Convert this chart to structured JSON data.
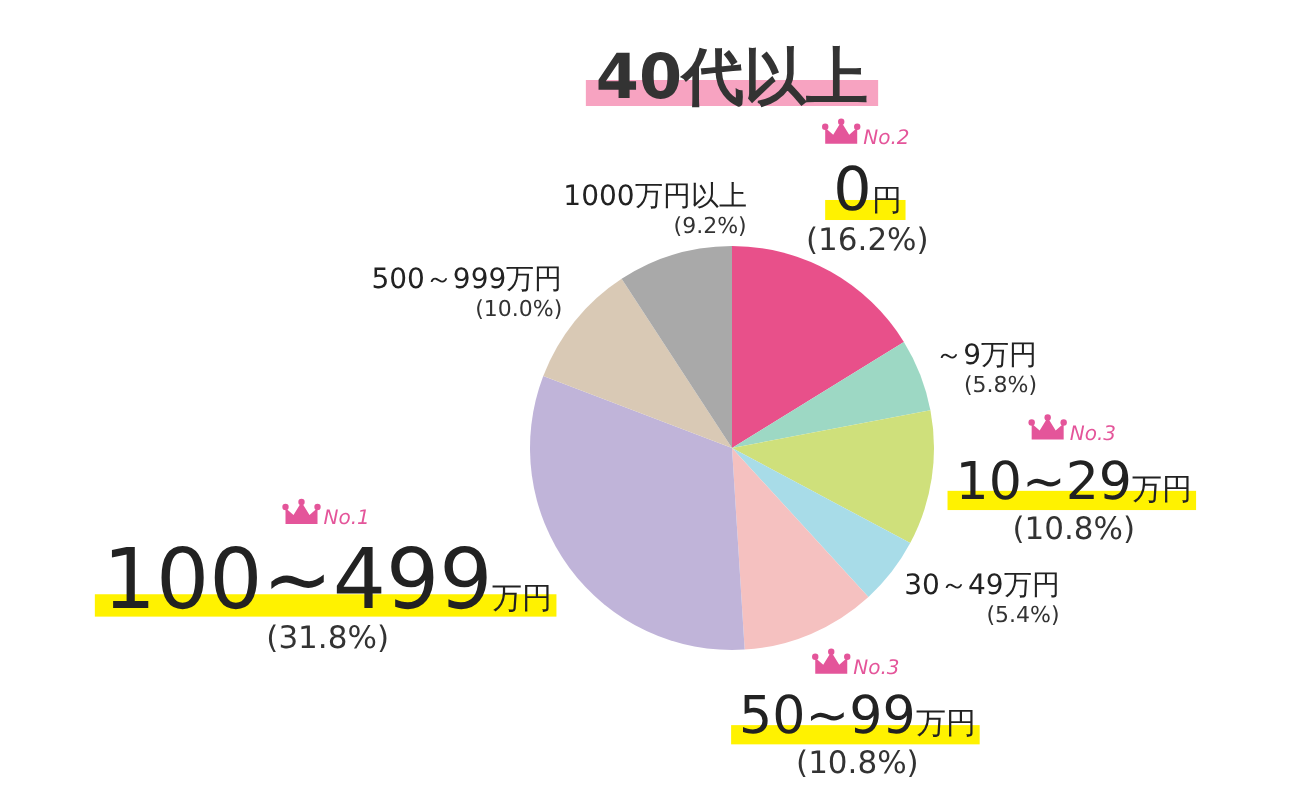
{
  "chart_data": {
    "type": "pie",
    "title": "40代以上",
    "categories": [
      "0円",
      "～9万円",
      "10~29万円",
      "30～49万円",
      "50~99万円",
      "100~499万円",
      "500～999万円",
      "1000万円以上"
    ],
    "values": [
      16.2,
      5.8,
      10.8,
      5.4,
      10.8,
      31.8,
      10.0,
      9.2
    ],
    "colors": [
      "#e8508a",
      "#9dd8c4",
      "#cfe07b",
      "#a8dce8",
      "#f5c1c0",
      "#c0b4d9",
      "#d9c9b5",
      "#a9a9a9"
    ],
    "value_labels": [
      "(16.2%)",
      "(5.8%)",
      "(10.8%)",
      "(5.4%)",
      "(10.8%)",
      "(31.8%)",
      "(10.0%)",
      "(9.2%)"
    ],
    "annotations": [
      {
        "text": "No.1",
        "x": "100~499万円"
      },
      {
        "text": "No.2",
        "x": "0円"
      },
      {
        "text": "No.3",
        "x": "10~29万円"
      },
      {
        "text": "No.3",
        "x": "50~99万円"
      }
    ]
  }
}
